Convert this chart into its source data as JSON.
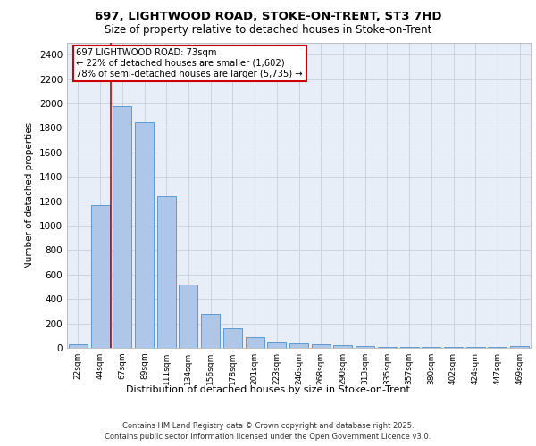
{
  "title_line1": "697, LIGHTWOOD ROAD, STOKE-ON-TRENT, ST3 7HD",
  "title_line2": "Size of property relative to detached houses in Stoke-on-Trent",
  "xlabel": "Distribution of detached houses by size in Stoke-on-Trent",
  "ylabel": "Number of detached properties",
  "categories": [
    "22sqm",
    "44sqm",
    "67sqm",
    "89sqm",
    "111sqm",
    "134sqm",
    "156sqm",
    "178sqm",
    "201sqm",
    "223sqm",
    "246sqm",
    "268sqm",
    "290sqm",
    "313sqm",
    "335sqm",
    "357sqm",
    "380sqm",
    "402sqm",
    "424sqm",
    "447sqm",
    "469sqm"
  ],
  "values": [
    30,
    1170,
    1980,
    1850,
    1240,
    515,
    275,
    160,
    90,
    50,
    40,
    30,
    20,
    15,
    5,
    5,
    5,
    5,
    5,
    5,
    15
  ],
  "bar_color": "#aec6e8",
  "bar_edge_color": "#5b9bd5",
  "red_line_index": 2,
  "annotation_text": "697 LIGHTWOOD ROAD: 73sqm\n← 22% of detached houses are smaller (1,602)\n78% of semi-detached houses are larger (5,735) →",
  "annotation_box_color": "#ffffff",
  "annotation_box_edge": "#cc0000",
  "ylim": [
    0,
    2500
  ],
  "yticks": [
    0,
    200,
    400,
    600,
    800,
    1000,
    1200,
    1400,
    1600,
    1800,
    2000,
    2200,
    2400
  ],
  "bg_color": "#e8eef7",
  "footer_line1": "Contains HM Land Registry data © Crown copyright and database right 2025.",
  "footer_line2": "Contains public sector information licensed under the Open Government Licence v3.0."
}
